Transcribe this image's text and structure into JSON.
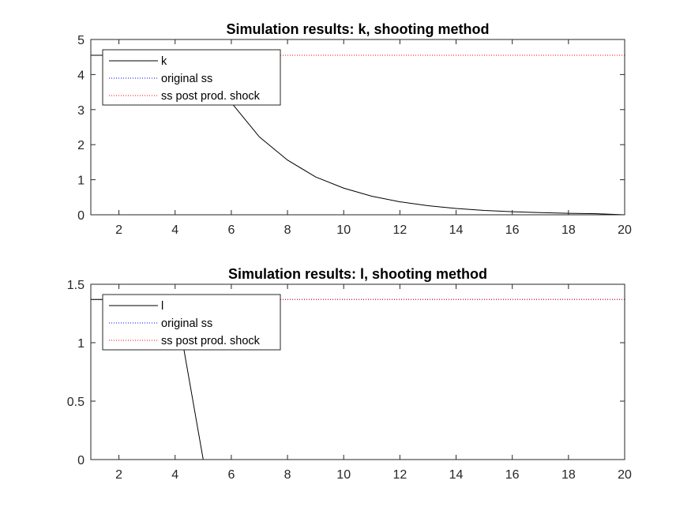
{
  "colors": {
    "series": "#000000",
    "original_ss": "#0000ff",
    "post_shock_ss": "#ff0000",
    "axes": "#262626"
  },
  "chart_data": [
    {
      "type": "line",
      "title": "Simulation results: k, shooting method",
      "xlabel": "",
      "ylabel": "",
      "xlim": [
        1,
        20
      ],
      "ylim": [
        0,
        5
      ],
      "xticks": [
        2,
        4,
        6,
        8,
        10,
        12,
        14,
        16,
        18,
        20
      ],
      "yticks": [
        0,
        1,
        2,
        3,
        4,
        5
      ],
      "legend_position": "top-left",
      "x": [
        1,
        2,
        3,
        4,
        5,
        6,
        7,
        8,
        9,
        10,
        11,
        12,
        13,
        14,
        15,
        16,
        17,
        18,
        19,
        20
      ],
      "series": [
        {
          "name": "k",
          "style": "solid",
          "color": "#000000",
          "values": [
            4.55,
            4.55,
            4.55,
            4.55,
            4.55,
            3.2,
            2.22,
            1.56,
            1.08,
            0.76,
            0.53,
            0.37,
            0.26,
            0.18,
            0.125,
            0.088,
            0.061,
            0.043,
            0.03,
            0.0
          ]
        },
        {
          "name": "original ss",
          "style": "dotted",
          "color": "#0000ff",
          "values": [
            4.55,
            4.55,
            4.55,
            4.55,
            4.55,
            4.55,
            4.55,
            4.55,
            4.55,
            4.55,
            4.55,
            4.55,
            4.55,
            4.55,
            4.55,
            4.55,
            4.55,
            4.55,
            4.55,
            4.55
          ]
        },
        {
          "name": "ss post prod. shock",
          "style": "dotted",
          "color": "#ff0000",
          "values": [
            4.55,
            4.55,
            4.55,
            4.55,
            4.55,
            4.55,
            4.55,
            4.55,
            4.55,
            4.55,
            4.55,
            4.55,
            4.55,
            4.55,
            4.55,
            4.55,
            4.55,
            4.55,
            4.55,
            4.55
          ]
        }
      ]
    },
    {
      "type": "line",
      "title": "Simulation results: l, shooting method",
      "xlabel": "",
      "ylabel": "",
      "xlim": [
        1,
        20
      ],
      "ylim": [
        0,
        1.5
      ],
      "xticks": [
        2,
        4,
        6,
        8,
        10,
        12,
        14,
        16,
        18,
        20
      ],
      "yticks": [
        0,
        0.5,
        1,
        1.5
      ],
      "legend_position": "top-left",
      "x": [
        1,
        2,
        3,
        4,
        5,
        6,
        7,
        8,
        9,
        10,
        11,
        12,
        13,
        14,
        15,
        16,
        17,
        18,
        19,
        20
      ],
      "series": [
        {
          "name": "l",
          "style": "solid",
          "color": "#000000",
          "values": [
            1.37,
            1.37,
            1.37,
            1.37,
            0.0,
            0.0,
            0.0,
            0.0,
            0.0,
            0.0,
            0.0,
            0.0,
            0.0,
            0.0,
            0.0,
            0.0,
            0.0,
            0.0,
            0.0,
            0.0
          ]
        },
        {
          "name": "original ss",
          "style": "dotted",
          "color": "#0000ff",
          "values": [
            1.37,
            1.37,
            1.37,
            1.37,
            1.37,
            1.37,
            1.37,
            1.37,
            1.37,
            1.37,
            1.37,
            1.37,
            1.37,
            1.37,
            1.37,
            1.37,
            1.37,
            1.37,
            1.37,
            1.37
          ]
        },
        {
          "name": "ss post prod. shock",
          "style": "dotted",
          "color": "#ff0000",
          "values": [
            1.37,
            1.37,
            1.37,
            1.37,
            1.37,
            1.37,
            1.37,
            1.37,
            1.37,
            1.37,
            1.37,
            1.37,
            1.37,
            1.37,
            1.37,
            1.37,
            1.37,
            1.37,
            1.37,
            1.37
          ]
        }
      ]
    }
  ]
}
